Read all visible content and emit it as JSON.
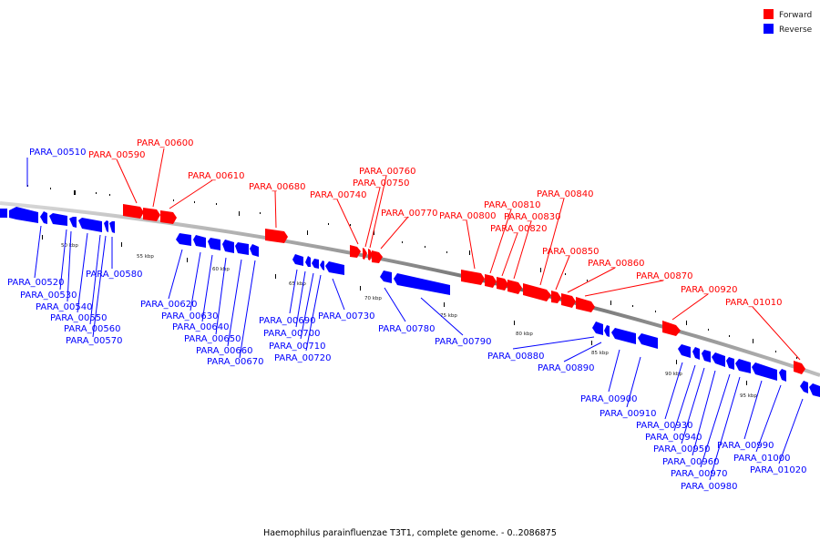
{
  "legend": [
    {
      "label": "Forward",
      "color": "#ff0000"
    },
    {
      "label": "Reverse",
      "color": "#0000ff"
    }
  ],
  "caption": "Haemophilus parainfluenzae T3T1, complete genome. - 0..2086875",
  "ticks": [
    "50 kbp",
    "55 kbp",
    "60 kbp",
    "65 kbp",
    "70 kbp",
    "75 kbp",
    "80 kbp",
    "85 kbp",
    "90 kbp",
    "95 kbp"
  ],
  "forward_genes": [
    "PARA_00590",
    "PARA_00600",
    "PARA_00610",
    "PARA_00680",
    "PARA_00740",
    "PARA_00750",
    "PARA_00760",
    "PARA_00770",
    "PARA_00800",
    "PARA_00810",
    "PARA_00820",
    "PARA_00830",
    "PARA_00840",
    "PARA_00850",
    "PARA_00860",
    "PARA_00870",
    "PARA_00920",
    "PARA_01010"
  ],
  "reverse_genes": [
    "PARA_00510",
    "PARA_00520",
    "PARA_00530",
    "PARA_00540",
    "PARA_00550",
    "PARA_00560",
    "PARA_00570",
    "PARA_00580",
    "PARA_00620",
    "PARA_00630",
    "PARA_00640",
    "PARA_00650",
    "PARA_00660",
    "PARA_00670",
    "PARA_00690",
    "PARA_00700",
    "PARA_00710",
    "PARA_00720",
    "PARA_00730",
    "PARA_00780",
    "PARA_00790",
    "PARA_00880",
    "PARA_00890",
    "PARA_00900",
    "PARA_00910",
    "PARA_00930",
    "PARA_00940",
    "PARA_00950",
    "PARA_00960",
    "PARA_00970",
    "PARA_00980",
    "PARA_00990",
    "PARA_01000",
    "PARA_01020"
  ]
}
